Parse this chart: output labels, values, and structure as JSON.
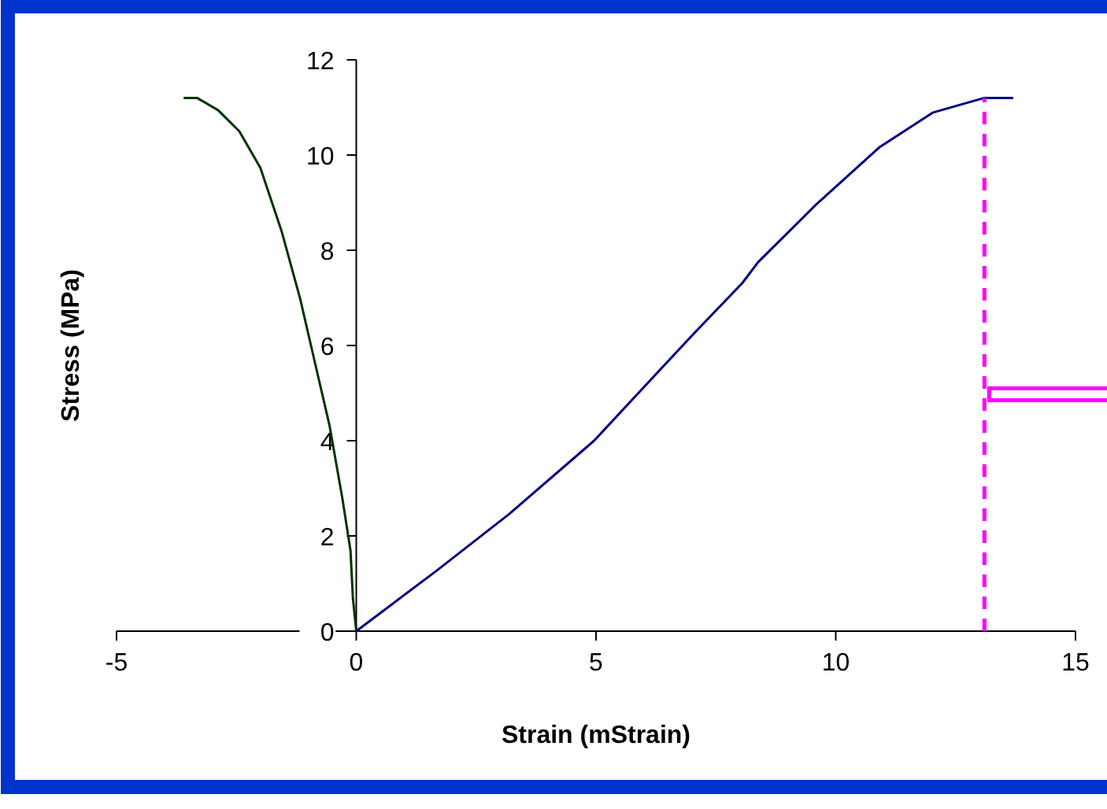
{
  "chart_data": {
    "type": "line",
    "xlabel": "Strain (mStrain)",
    "ylabel": "Stress (MPa)",
    "xlim": [
      -5,
      15
    ],
    "xticks": [
      -5,
      0,
      5,
      10,
      15
    ],
    "ylim": [
      0,
      12
    ],
    "yticks": [
      0,
      2,
      4,
      6,
      8,
      10,
      12
    ],
    "grid": false,
    "marker": "none",
    "series": [
      {
        "color": "#003300",
        "x": [
          -3.6,
          -3.32,
          -2.88,
          -2.44,
          -2.0,
          -1.56,
          -1.17,
          -0.89,
          -0.56,
          -0.29,
          -0.12,
          -0.07,
          0
        ],
        "values": [
          11.2,
          11.2,
          10.94,
          10.5,
          9.73,
          8.41,
          6.98,
          5.76,
          4.33,
          2.79,
          1.69,
          0.69,
          0
        ]
      },
      {
        "color": "#000080",
        "x": [
          0,
          1.65,
          3.19,
          4.96,
          6.28,
          7.05,
          8.05,
          8.38,
          9.59,
          10.92,
          12.02,
          13.1,
          13.7
        ],
        "values": [
          0,
          1.25,
          2.46,
          4.0,
          5.43,
          6.26,
          7.31,
          7.75,
          8.96,
          10.17,
          10.89,
          11.2,
          11.2
        ]
      },
      {
        "color": "#ff00ff",
        "line_style": "dashed",
        "x": [
          13.1,
          13.1
        ],
        "values": [
          0,
          11.2
        ]
      }
    ]
  }
}
